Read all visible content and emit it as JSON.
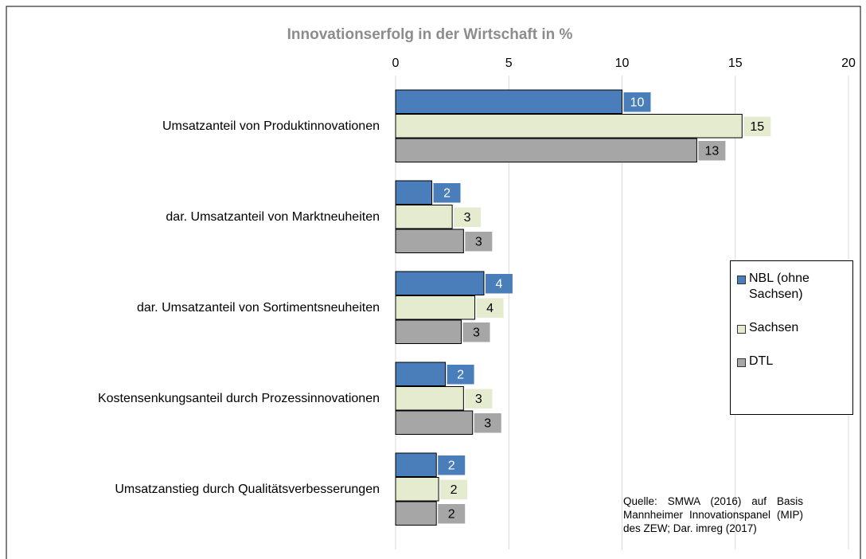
{
  "chart_data": {
    "type": "bar",
    "orientation": "horizontal",
    "title": "Innovationserfolg in der Wirtschaft in %",
    "categories": [
      "Umsatzanteil von Produktinnovationen",
      "dar. Umsatzanteil von Marktneuheiten",
      "dar. Umsatzanteil von Sortimentsneuheiten",
      "Kostensenkungsanteil durch Prozessinnovationen",
      "Umsatzanstieg durch Qualitätsverbesserungen"
    ],
    "series": [
      {
        "name": "NBL (ohne Sachsen)",
        "color": "#4a7ebb",
        "values": [
          10.0,
          1.6,
          3.9,
          2.2,
          1.8
        ],
        "value_labels": [
          "10",
          "2",
          "4",
          "2",
          "2"
        ]
      },
      {
        "name": "Sachsen",
        "color": "#e4ebcf",
        "values": [
          15.3,
          2.5,
          3.5,
          3.0,
          1.9
        ],
        "value_labels": [
          "15",
          "3",
          "4",
          "3",
          "2"
        ]
      },
      {
        "name": "DTL",
        "color": "#a6a6a6",
        "values": [
          13.3,
          3.0,
          2.9,
          3.4,
          1.8
        ],
        "value_labels": [
          "13",
          "3",
          "3",
          "3",
          "2"
        ]
      }
    ],
    "xlim": [
      0,
      20
    ],
    "xticks": [
      0,
      5,
      10,
      15,
      20
    ],
    "grid": true,
    "legend": "right",
    "source": "Quelle: SMWA (2016) auf Basis Mannheimer Innovationspanel (MIP) des ZEW; Dar. imreg (2017)"
  }
}
